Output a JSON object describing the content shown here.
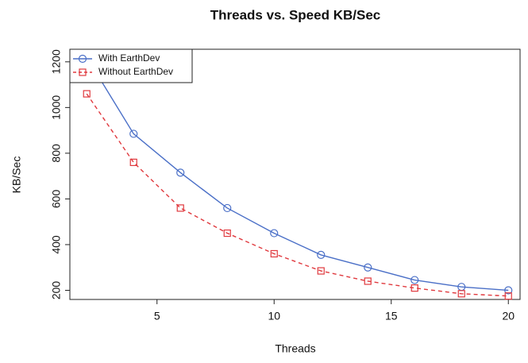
{
  "chart_data": {
    "type": "line",
    "title": "Threads vs. Speed KB/Sec",
    "x_label": "Threads",
    "y_label": "KB/Sec",
    "x": [
      2,
      4,
      6,
      8,
      10,
      12,
      14,
      16,
      18,
      20
    ],
    "series": [
      {
        "name": "With EarthDev",
        "color": "#4a6fc7",
        "marker": "circle",
        "linestyle": "solid",
        "values": [
          1220,
          885,
          715,
          560,
          450,
          355,
          300,
          245,
          215,
          200
        ]
      },
      {
        "name": "Without EarthDev",
        "color": "#e0393e",
        "marker": "square",
        "linestyle": "dashed",
        "values": [
          1060,
          760,
          560,
          450,
          360,
          285,
          240,
          210,
          185,
          175
        ]
      }
    ],
    "xlim": [
      1.28,
      20.5
    ],
    "ylim": [
      160,
      1255
    ],
    "xticks": [
      5,
      10,
      15,
      20
    ],
    "yticks": [
      200,
      400,
      600,
      800,
      1000,
      1200
    ],
    "legend": "top-left"
  }
}
